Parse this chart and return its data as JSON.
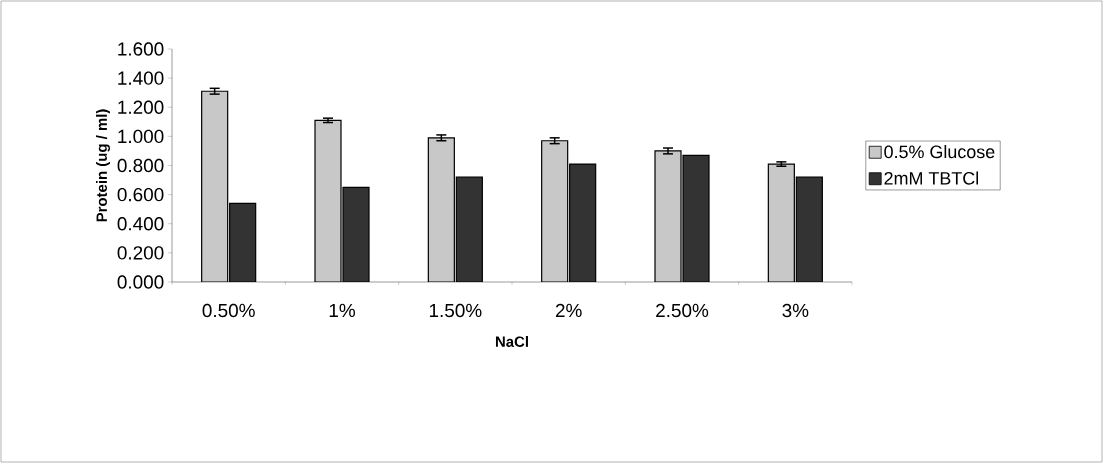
{
  "chart_data": {
    "type": "bar",
    "xlabel": "NaCl",
    "ylabel": "Protein (ug / ml)",
    "categories": [
      "0.50%",
      "1%",
      "1.50%",
      "2%",
      "2.50%",
      "3%"
    ],
    "series": [
      {
        "name": "0.5%  Glucose",
        "color": "#c8c8c8",
        "values": [
          1.31,
          1.11,
          0.99,
          0.97,
          0.9,
          0.81
        ],
        "errors": [
          0.02,
          0.015,
          0.02,
          0.02,
          0.02,
          0.015
        ]
      },
      {
        "name": "2mM TBTCl",
        "color": "#333333",
        "values": [
          0.54,
          0.65,
          0.72,
          0.81,
          0.87,
          0.72
        ]
      }
    ],
    "ylim": [
      0,
      1.6
    ],
    "yticks": [
      {
        "value": 0,
        "label": "0.000"
      },
      {
        "value": 0.2,
        "label": "0.200"
      },
      {
        "value": 0.4,
        "label": "0.400"
      },
      {
        "value": 0.6,
        "label": "0.600"
      },
      {
        "value": 0.8,
        "label": "0.800"
      },
      {
        "value": 1.0,
        "label": "1.000"
      },
      {
        "value": 1.2,
        "label": "1.200"
      },
      {
        "value": 1.4,
        "label": "1.400"
      },
      {
        "value": 1.6,
        "label": "1.600"
      }
    ],
    "grid": false,
    "legend": "right"
  }
}
